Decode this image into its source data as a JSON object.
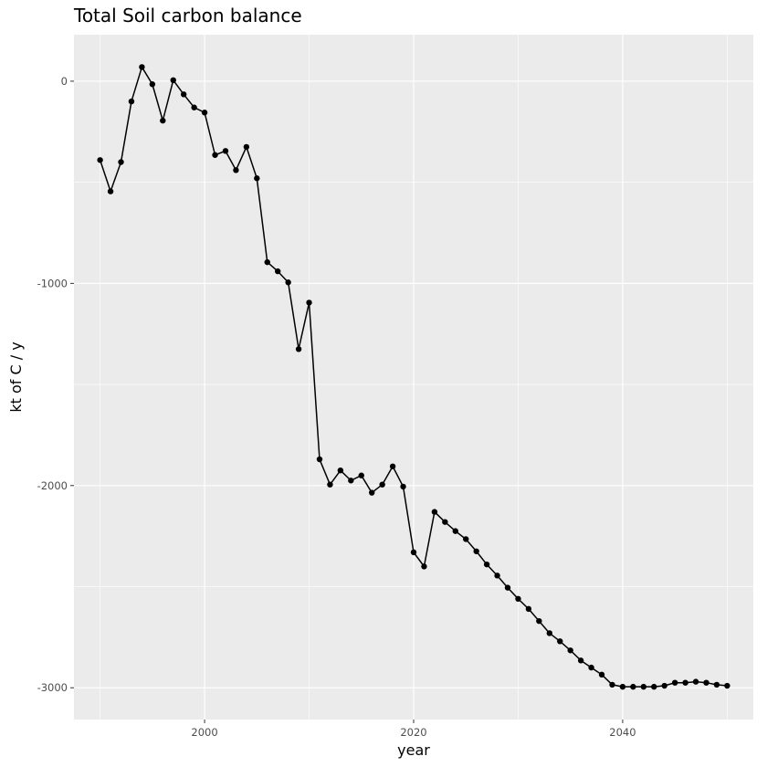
{
  "chart_data": {
    "type": "line",
    "title": "Total Soil carbon balance",
    "xlabel": "year",
    "ylabel": "kt of C / y",
    "xlim": [
      1987.5,
      2052.5
    ],
    "ylim": [
      -3157,
      230
    ],
    "x_ticks": [
      2000,
      2020,
      2040
    ],
    "y_ticks": [
      0,
      -1000,
      -2000,
      -3000
    ],
    "grid": true,
    "markers": true,
    "colors": {
      "panel": "#ebebeb",
      "grid": "#ffffff",
      "line": "#000000"
    },
    "series": [
      {
        "x": [
          1990,
          1991,
          1992,
          1993,
          1994,
          1995,
          1996,
          1997,
          1998,
          1999,
          2000,
          2001,
          2002,
          2003,
          2004,
          2005,
          2006,
          2007,
          2008,
          2009,
          2010,
          2011,
          2012,
          2013,
          2014,
          2015,
          2016,
          2017,
          2018,
          2019,
          2020,
          2021,
          2022,
          2023,
          2024,
          2025,
          2026,
          2027,
          2028,
          2029,
          2030,
          2031,
          2032,
          2033,
          2034,
          2035,
          2036,
          2037,
          2038,
          2039,
          2040,
          2041,
          2042,
          2043,
          2044,
          2045,
          2046,
          2047,
          2048,
          2049,
          2050
        ],
        "y": [
          -390,
          -545,
          -400,
          -100,
          70,
          -15,
          -195,
          5,
          -65,
          -130,
          -155,
          -365,
          -345,
          -440,
          -325,
          -480,
          -895,
          -940,
          -995,
          -1325,
          -1095,
          -1870,
          -1995,
          -1925,
          -1975,
          -1950,
          -2035,
          -1995,
          -1905,
          -2005,
          -2330,
          -2400,
          -2130,
          -2180,
          -2225,
          -2265,
          -2325,
          -2390,
          -2445,
          -2505,
          -2560,
          -2610,
          -2670,
          -2730,
          -2770,
          -2815,
          -2865,
          -2900,
          -2935,
          -2985,
          -2995,
          -2995,
          -2995,
          -2995,
          -2990,
          -2975,
          -2975,
          -2970,
          -2975,
          -2985,
          -2990
        ]
      }
    ]
  }
}
